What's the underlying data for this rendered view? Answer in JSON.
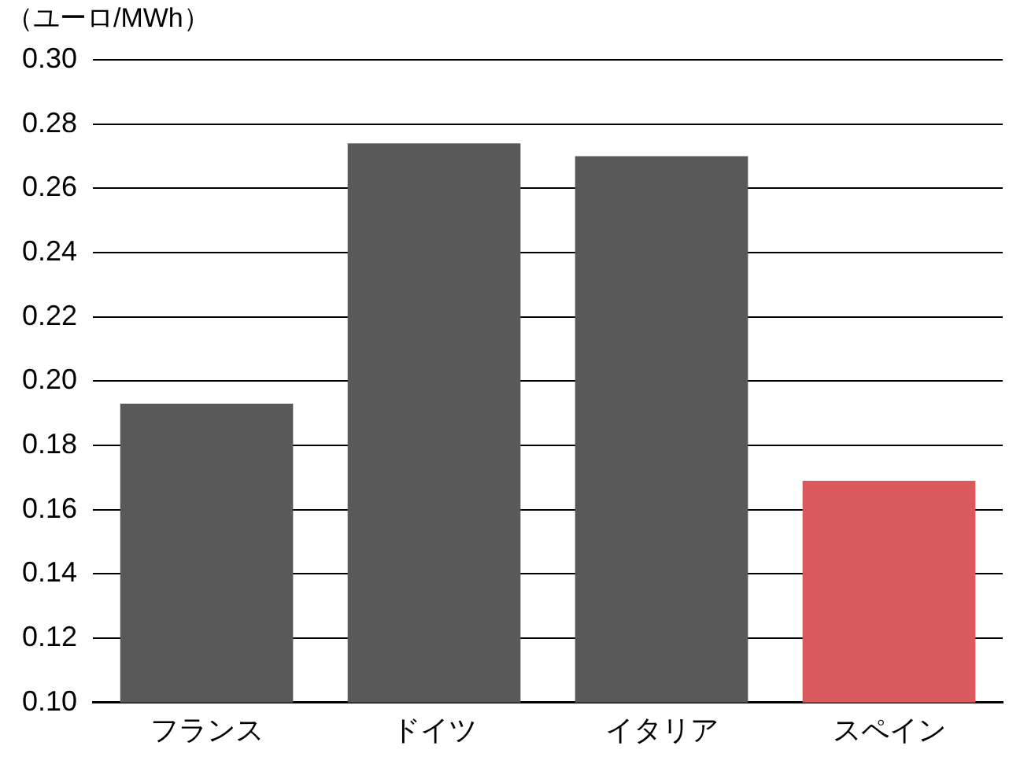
{
  "chart_data": {
    "type": "bar",
    "ylabel": "（ユーロ/MWh）",
    "categories": [
      "フランス",
      "ドイツ",
      "イタリア",
      "スペイン"
    ],
    "values": [
      0.193,
      0.274,
      0.27,
      0.169
    ],
    "colors": [
      "#595959",
      "#595959",
      "#595959",
      "#d9595c"
    ],
    "ylim": [
      0.1,
      0.3
    ],
    "yticks": [
      {
        "value": 0.1,
        "label": "0.10"
      },
      {
        "value": 0.12,
        "label": "0.12"
      },
      {
        "value": 0.14,
        "label": "0.14"
      },
      {
        "value": 0.16,
        "label": "0.16"
      },
      {
        "value": 0.18,
        "label": "0.18"
      },
      {
        "value": 0.2,
        "label": "0.20"
      },
      {
        "value": 0.22,
        "label": "0.22"
      },
      {
        "value": 0.24,
        "label": "0.24"
      },
      {
        "value": 0.26,
        "label": "0.26"
      },
      {
        "value": 0.28,
        "label": "0.28"
      },
      {
        "value": 0.3,
        "label": "0.30"
      }
    ],
    "grid": "y"
  }
}
